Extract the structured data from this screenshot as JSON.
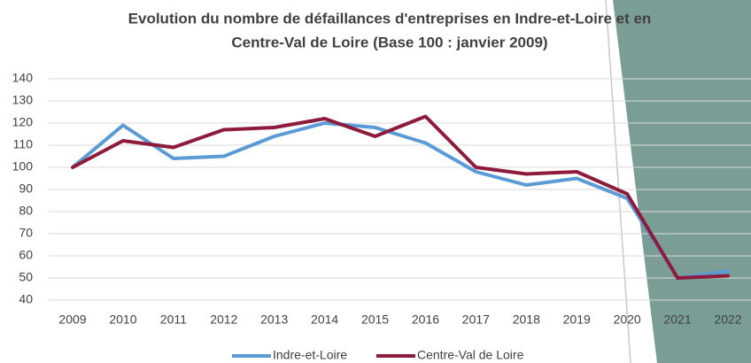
{
  "chart_data": {
    "type": "line",
    "title": [
      "Evolution du nombre de défaillances d'entreprises en Indre-et-Loire et en",
      "Centre-Val de Loire (Base 100 : janvier 2009)"
    ],
    "categories": [
      "2009",
      "2010",
      "2011",
      "2012",
      "2013",
      "2014",
      "2015",
      "2016",
      "2017",
      "2018",
      "2019",
      "2020",
      "2021",
      "2022"
    ],
    "series": [
      {
        "name": "Indre-et-Loire",
        "color": "#5b9bd5",
        "values": [
          100,
          119,
          104,
          105,
          114,
          120,
          118,
          111,
          98,
          92,
          95,
          86,
          50,
          53
        ]
      },
      {
        "name": "Centre-Val de Loire",
        "color": "#8e1b3c",
        "values": [
          100,
          112,
          109,
          117,
          118,
          122,
          114,
          123,
          100,
          97,
          98,
          88,
          50,
          51
        ]
      }
    ],
    "ylim": [
      40,
      140
    ],
    "yticks": [
      40,
      50,
      60,
      70,
      80,
      90,
      100,
      110,
      120,
      130,
      140
    ],
    "grid": true,
    "legend": "bottom"
  }
}
